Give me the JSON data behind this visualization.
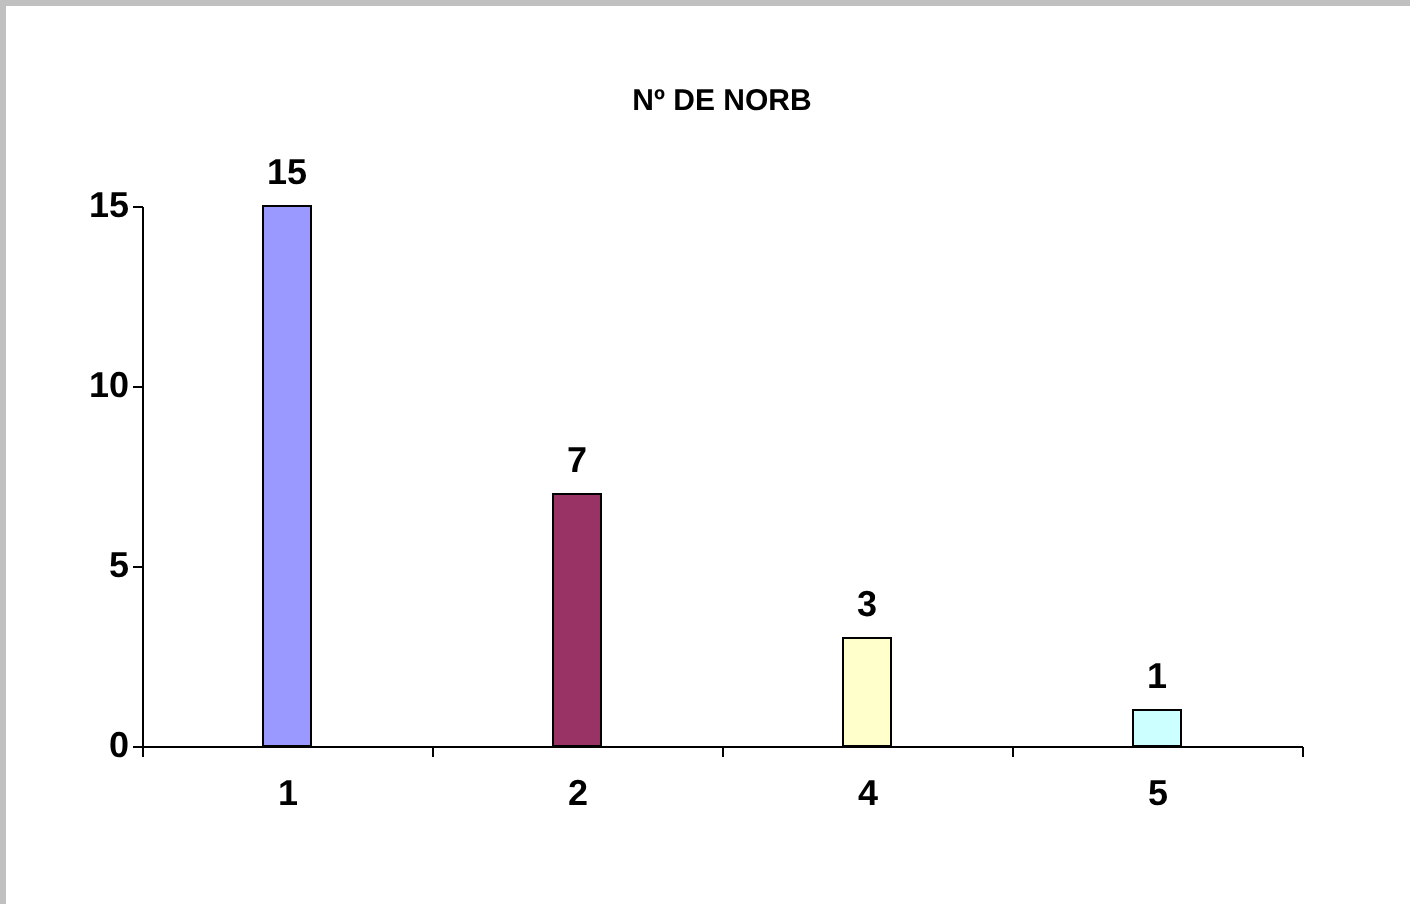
{
  "chart_data": {
    "type": "bar",
    "title": "Nº DE NORB",
    "categories": [
      "1",
      "2",
      "4",
      "5"
    ],
    "values": [
      15,
      7,
      3,
      1
    ],
    "colors": [
      "#9999ff",
      "#993366",
      "#ffffcc",
      "#ccffff"
    ],
    "ylim": [
      0,
      15
    ],
    "yticks": [
      0,
      5,
      10,
      15
    ],
    "grid": false,
    "data_labels": true
  }
}
